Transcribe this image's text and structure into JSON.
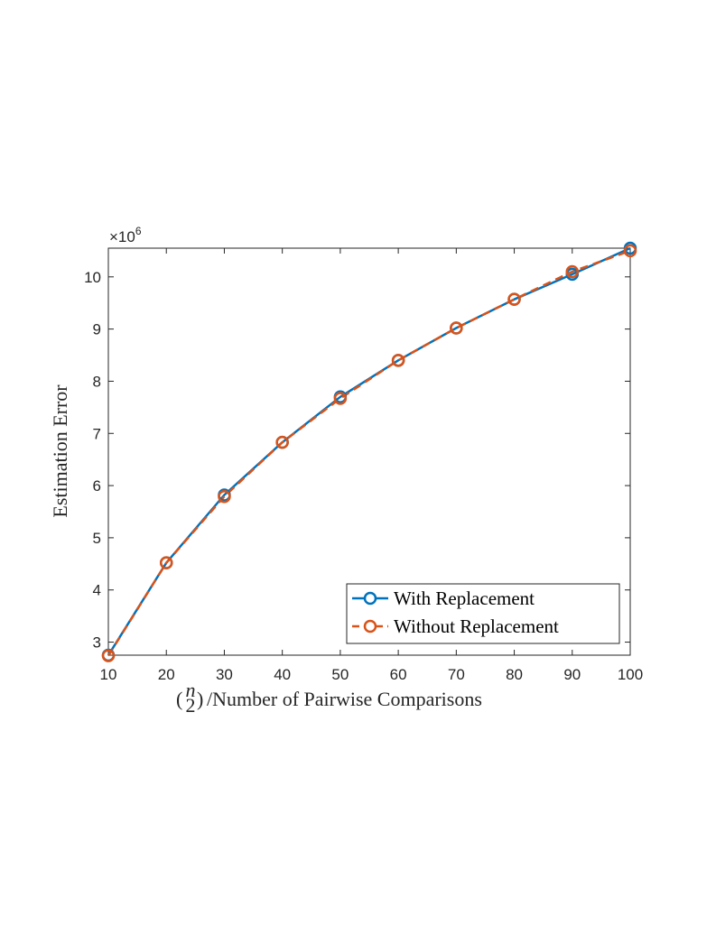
{
  "chart_data": {
    "type": "line",
    "x": [
      10,
      20,
      30,
      40,
      50,
      60,
      70,
      80,
      90,
      100
    ],
    "xlabel_prefix_top": "n",
    "xlabel_prefix_bottom": "2",
    "xlabel_rest": "/Number of Pairwise Comparisons",
    "ylabel": "Estimation Error",
    "y_multiplier_base": "×10",
    "y_multiplier_exp": "6",
    "xlim": [
      10,
      100
    ],
    "ylim": [
      2.75,
      10.55
    ],
    "xticks": [
      10,
      20,
      30,
      40,
      50,
      60,
      70,
      80,
      90,
      100
    ],
    "yticks": [
      3,
      4,
      5,
      6,
      7,
      8,
      9,
      10
    ],
    "grid": false,
    "legend_position": "bottom-right",
    "series": [
      {
        "name": "With Replacement",
        "color": "#0072BD",
        "line_style": "solid",
        "marker": "circle",
        "values": [
          2.75,
          4.52,
          5.82,
          6.83,
          7.7,
          8.4,
          9.02,
          9.57,
          10.05,
          10.55
        ]
      },
      {
        "name": "Without Replacement",
        "color": "#D95319",
        "line_style": "dashed",
        "marker": "circle",
        "values": [
          2.74,
          4.52,
          5.79,
          6.83,
          7.67,
          8.4,
          9.02,
          9.57,
          10.1,
          10.5
        ]
      }
    ]
  }
}
